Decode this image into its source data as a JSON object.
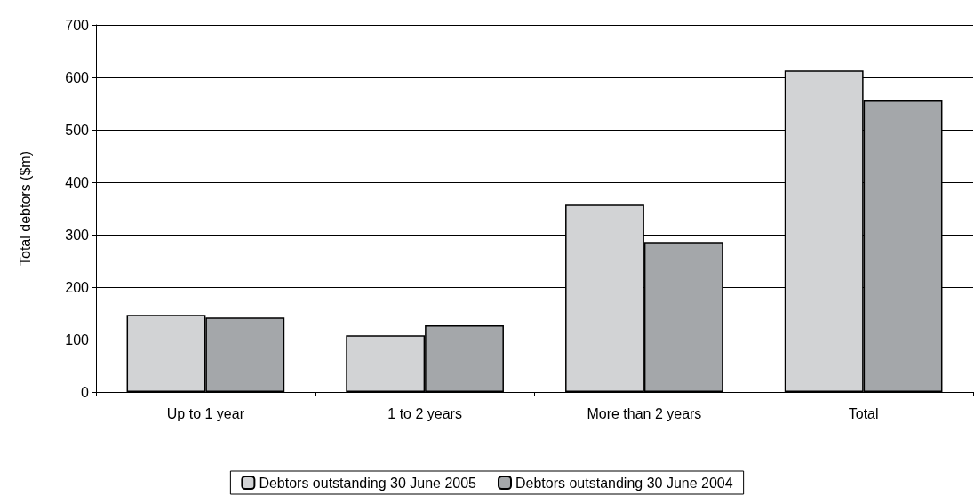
{
  "chart_data": {
    "type": "bar",
    "ylabel": "Total debtors ($m)",
    "categories": [
      "Up to 1 year",
      "1 to 2 years",
      "More than 2 years",
      "Total"
    ],
    "series": [
      {
        "name": "Debtors outstanding 30 June 2005",
        "color": "#d2d3d5",
        "values": [
          147,
          108,
          357,
          613
        ]
      },
      {
        "name": "Debtors outstanding 30 June 2004",
        "color": "#a4a7aa",
        "values": [
          142,
          127,
          286,
          556
        ]
      }
    ],
    "ylim": [
      0,
      700
    ],
    "yticks": [
      0,
      100,
      200,
      300,
      400,
      500,
      600,
      700
    ],
    "grid": "y",
    "legend": "bottom"
  }
}
